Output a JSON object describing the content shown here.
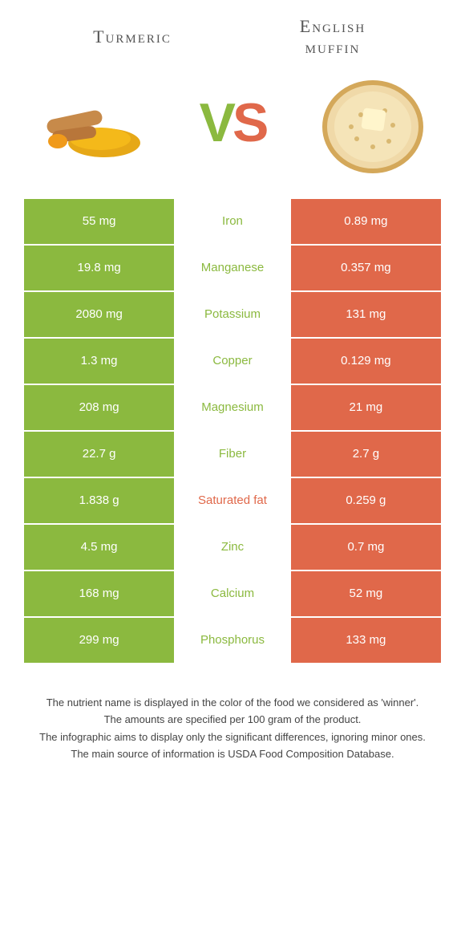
{
  "titles": {
    "left": "Turmeric",
    "right_line1": "English",
    "right_line2": "muffin"
  },
  "vs": {
    "v": "V",
    "s": "S"
  },
  "colors": {
    "left_bg": "#8bb93f",
    "right_bg": "#e0684a",
    "mid_bg": "#ffffff",
    "green_text": "#8bb93f",
    "orange_text": "#e0684a"
  },
  "rows": [
    {
      "left": "55 mg",
      "label": "Iron",
      "right": "0.89 mg",
      "label_color": "#8bb93f"
    },
    {
      "left": "19.8 mg",
      "label": "Manganese",
      "right": "0.357 mg",
      "label_color": "#8bb93f"
    },
    {
      "left": "2080 mg",
      "label": "Potassium",
      "right": "131 mg",
      "label_color": "#8bb93f"
    },
    {
      "left": "1.3 mg",
      "label": "Copper",
      "right": "0.129 mg",
      "label_color": "#8bb93f"
    },
    {
      "left": "208 mg",
      "label": "Magnesium",
      "right": "21 mg",
      "label_color": "#8bb93f"
    },
    {
      "left": "22.7 g",
      "label": "Fiber",
      "right": "2.7 g",
      "label_color": "#8bb93f"
    },
    {
      "left": "1.838 g",
      "label": "Saturated fat",
      "right": "0.259 g",
      "label_color": "#e0684a"
    },
    {
      "left": "4.5 mg",
      "label": "Zinc",
      "right": "0.7 mg",
      "label_color": "#8bb93f"
    },
    {
      "left": "168 mg",
      "label": "Calcium",
      "right": "52 mg",
      "label_color": "#8bb93f"
    },
    {
      "left": "299 mg",
      "label": "Phosphorus",
      "right": "133 mg",
      "label_color": "#8bb93f"
    }
  ],
  "footer": {
    "l1": "The nutrient name is displayed in the color of the food we considered as 'winner'.",
    "l2": "The amounts are specified per 100 gram of the product.",
    "l3": "The infographic aims to display only the significant differences, ignoring minor ones.",
    "l4": "The main source of information is USDA Food Composition Database."
  }
}
